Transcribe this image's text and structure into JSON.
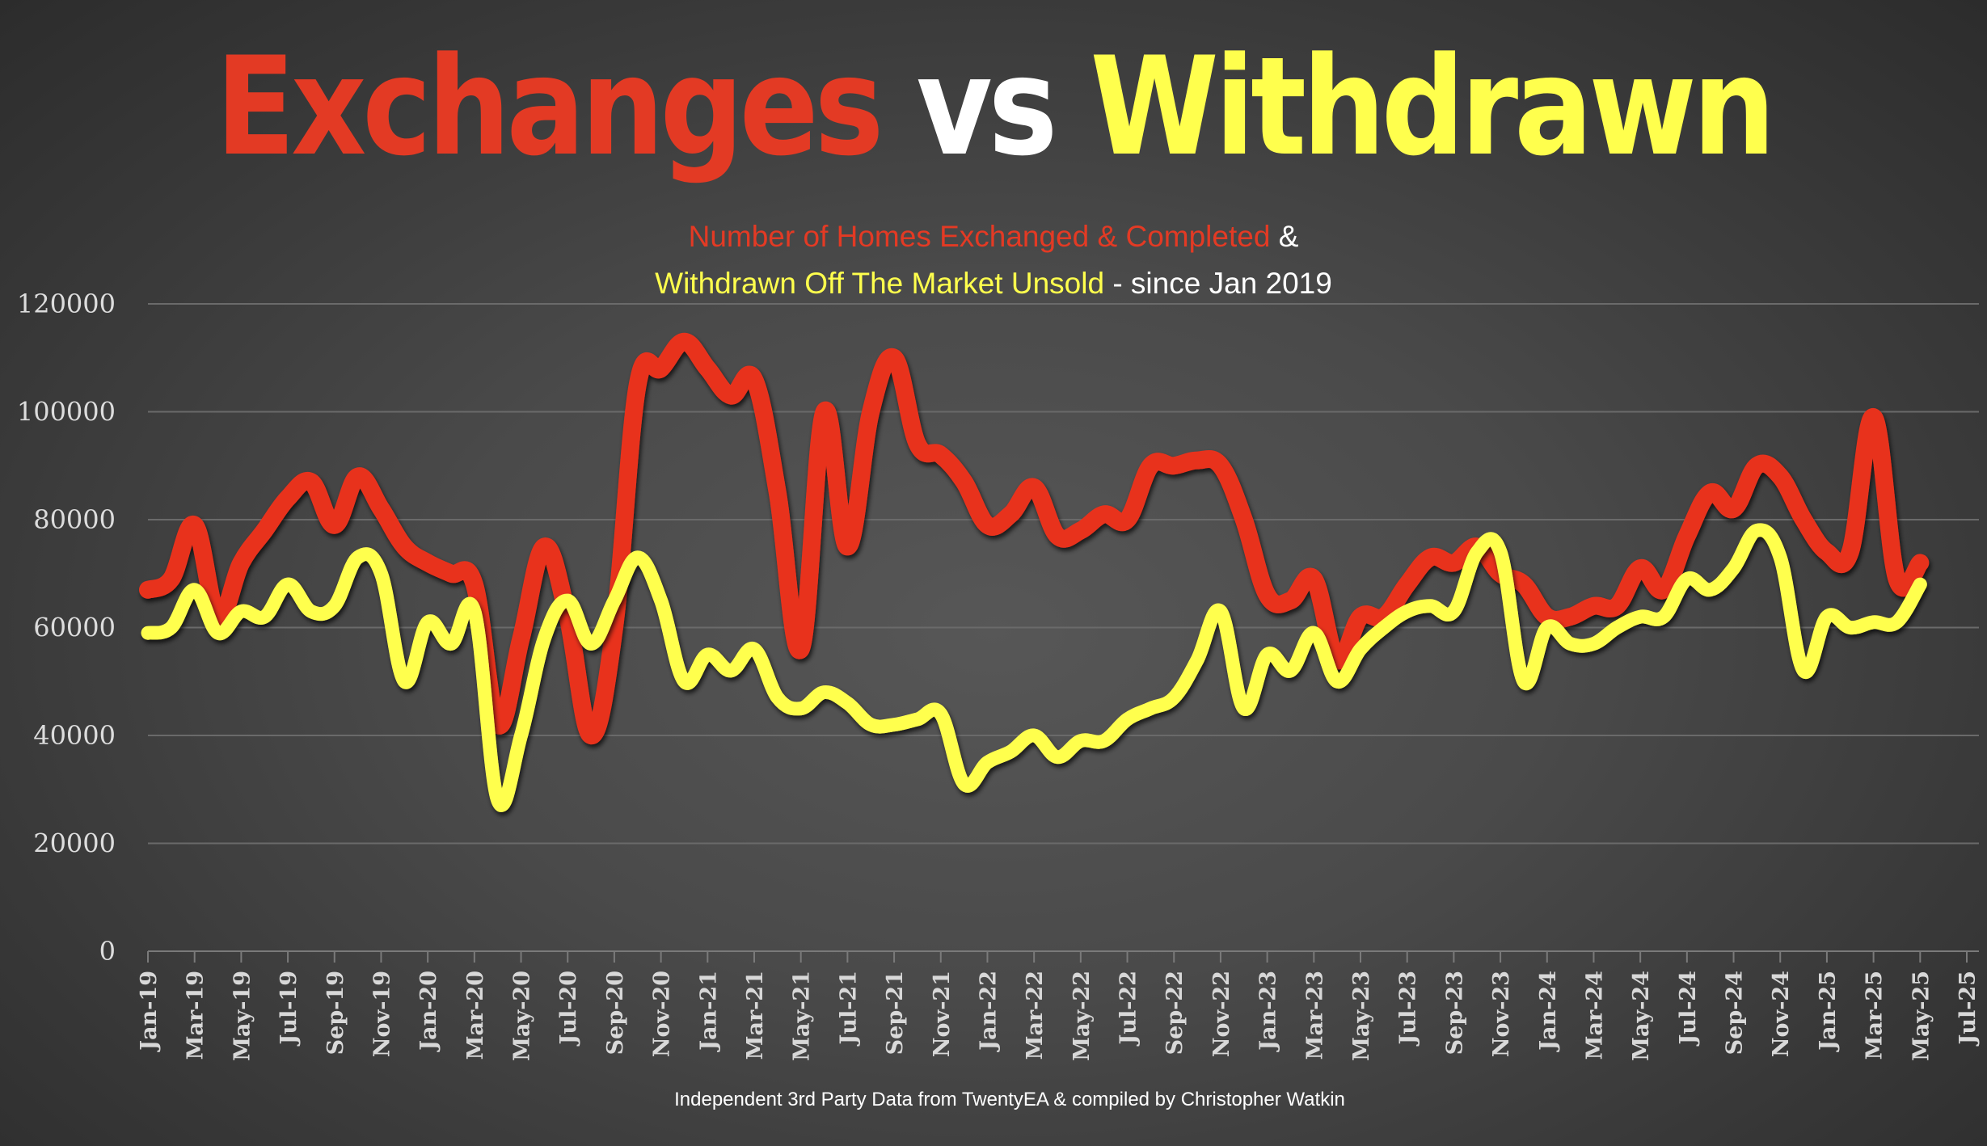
{
  "title": {
    "part1": "Exchanges",
    "part2": "vs",
    "part3": "Withdrawn"
  },
  "subtitle": {
    "line1_red": "Number of Homes Exchanged & Completed",
    "line1_white": " &",
    "line2_yellow": "Withdrawn Off The Market Unsold",
    "line2_white": " - since Jan 2019"
  },
  "footer": "Independent 3rd Party Data from TwentyEA  & compiled by Christopher Watkin",
  "colors": {
    "exchanges": "#E8321F",
    "withdrawn": "#FFFF4D",
    "grid": "#6a6a6a"
  },
  "chart_data": {
    "type": "line",
    "title": "Exchanges vs Withdrawn",
    "subtitle": "Number of Homes Exchanged & Completed & Withdrawn Off The Market Unsold - since Jan 2019",
    "xlabel": "",
    "ylabel": "",
    "ylim": [
      0,
      120000
    ],
    "yticks": [
      0,
      20000,
      40000,
      60000,
      80000,
      100000,
      120000
    ],
    "xtick_labels": [
      "Jan-19",
      "Mar-19",
      "May-19",
      "Jul-19",
      "Sep-19",
      "Nov-19",
      "Jan-20",
      "Mar-20",
      "May-20",
      "Jul-20",
      "Sep-20",
      "Nov-20",
      "Jan-21",
      "Mar-21",
      "May-21",
      "Jul-21",
      "Sep-21",
      "Nov-21",
      "Jan-22",
      "Mar-22",
      "May-22",
      "Jul-22",
      "Sep-22",
      "Nov-22",
      "Jan-23",
      "Mar-23",
      "May-23",
      "Jul-23",
      "Sep-23",
      "Nov-23",
      "Jan-24",
      "Mar-24",
      "May-24",
      "Jul-24",
      "Sep-24",
      "Nov-24",
      "Jan-25",
      "Mar-25",
      "May-25",
      "Jul-25"
    ],
    "x_range_months": [
      0,
      78
    ],
    "grid": "horizontal",
    "legend": "none (series identified by colored subtitle text)",
    "series": [
      {
        "name": "Exchanged & Completed",
        "color": "#E8321F",
        "start": "Jan-19",
        "values": [
          67000,
          69000,
          79000,
          62000,
          72000,
          78000,
          84000,
          87000,
          79000,
          88000,
          82000,
          75000,
          72000,
          70000,
          68000,
          42000,
          58000,
          75000,
          62000,
          40000,
          60000,
          105000,
          108000,
          113000,
          108000,
          103000,
          106000,
          85000,
          56000,
          100000,
          75000,
          100000,
          110000,
          94000,
          92000,
          87000,
          79000,
          81000,
          86000,
          77000,
          78000,
          81000,
          80000,
          90000,
          90000,
          91000,
          90000,
          80000,
          66000,
          65000,
          69000,
          54000,
          62000,
          62000,
          68000,
          73000,
          72000,
          75000,
          70000,
          68000,
          62000,
          62000,
          64000,
          64000,
          71000,
          67000,
          77000,
          85000,
          82000,
          90000,
          88000,
          80000,
          74000,
          74000,
          99000,
          69000,
          72000
        ]
      },
      {
        "name": "Withdrawn Off The Market Unsold",
        "color": "#FFFF4D",
        "start": "Jan-19",
        "values": [
          59000,
          60000,
          67000,
          59000,
          63000,
          62000,
          68000,
          63000,
          64000,
          73000,
          70000,
          50000,
          61000,
          57000,
          63000,
          28000,
          40000,
          58000,
          65000,
          57000,
          65000,
          73000,
          65000,
          50000,
          55000,
          52000,
          56000,
          47000,
          45000,
          48000,
          46000,
          42000,
          42000,
          43000,
          44000,
          31000,
          35000,
          37000,
          40000,
          36000,
          39000,
          39000,
          43000,
          45000,
          47000,
          54000,
          63000,
          45000,
          55000,
          52000,
          59000,
          50000,
          56000,
          60000,
          63000,
          64000,
          63000,
          74000,
          74000,
          50000,
          60000,
          57000,
          57000,
          60000,
          62000,
          62000,
          69000,
          67000,
          71000,
          78000,
          73000,
          52000,
          62000,
          60000,
          61000,
          61000,
          68000
        ]
      }
    ]
  }
}
